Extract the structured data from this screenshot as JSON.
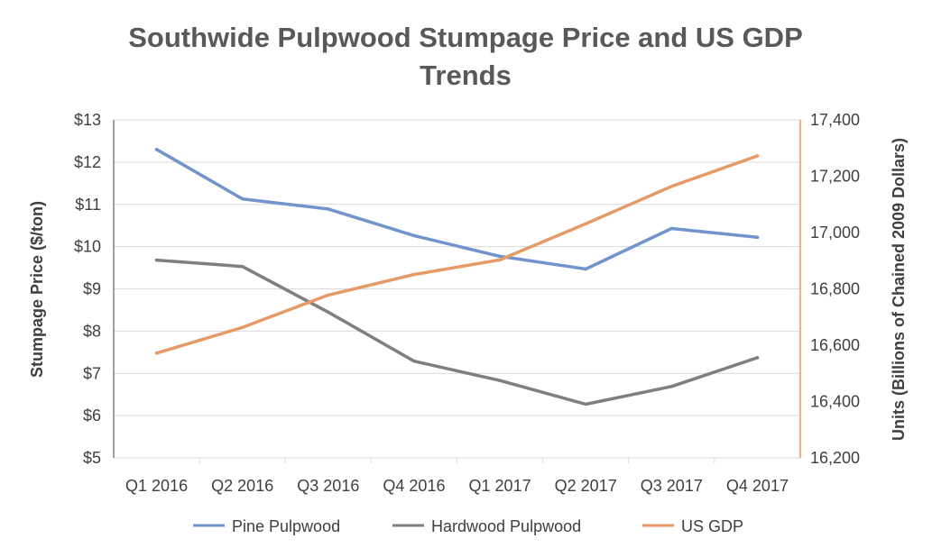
{
  "chart_data": {
    "type": "line",
    "title_lines": [
      "Southwide Pulpwood Stumpage Price and US GDP",
      "Trends"
    ],
    "categories": [
      "Q1 2016",
      "Q2 2016",
      "Q3 2016",
      "Q4 2016",
      "Q1 2017",
      "Q2 2017",
      "Q3 2017",
      "Q4 2017"
    ],
    "ylabel": "Stumpage Price ($/ton)",
    "y2label": "Units (Billions of Chained 2009 Dollars)",
    "ylim": [
      5,
      13
    ],
    "y2lim": [
      16200,
      17400
    ],
    "yticks": [
      5,
      6,
      7,
      8,
      9,
      10,
      11,
      12,
      13
    ],
    "yticklabels": [
      "$5",
      "$6",
      "$7",
      "$8",
      "$9",
      "$10",
      "$11",
      "$12",
      "$13"
    ],
    "y2ticks": [
      16200,
      16400,
      16600,
      16800,
      17000,
      17200,
      17400
    ],
    "y2ticklabels": [
      "16,200",
      "16,400",
      "16,600",
      "16,800",
      "17,000",
      "17,200",
      "17,400"
    ],
    "grid": true,
    "legend_position": "bottom",
    "series": [
      {
        "name": "Pine Pulpwood",
        "axis": "left",
        "color": "#7294cc",
        "values": [
          12.3,
          11.13,
          10.89,
          10.26,
          9.77,
          9.47,
          10.43,
          10.22
        ]
      },
      {
        "name": "Hardwood Pulpwood",
        "axis": "left",
        "color": "#7f7f7f",
        "values": [
          9.68,
          9.53,
          8.45,
          7.29,
          6.83,
          6.27,
          6.69,
          7.37
        ]
      },
      {
        "name": "US GDP",
        "axis": "right",
        "color": "#e69a67",
        "values": [
          16572,
          16663,
          16778,
          16851,
          16903,
          17031,
          17164,
          17272
        ]
      }
    ]
  }
}
